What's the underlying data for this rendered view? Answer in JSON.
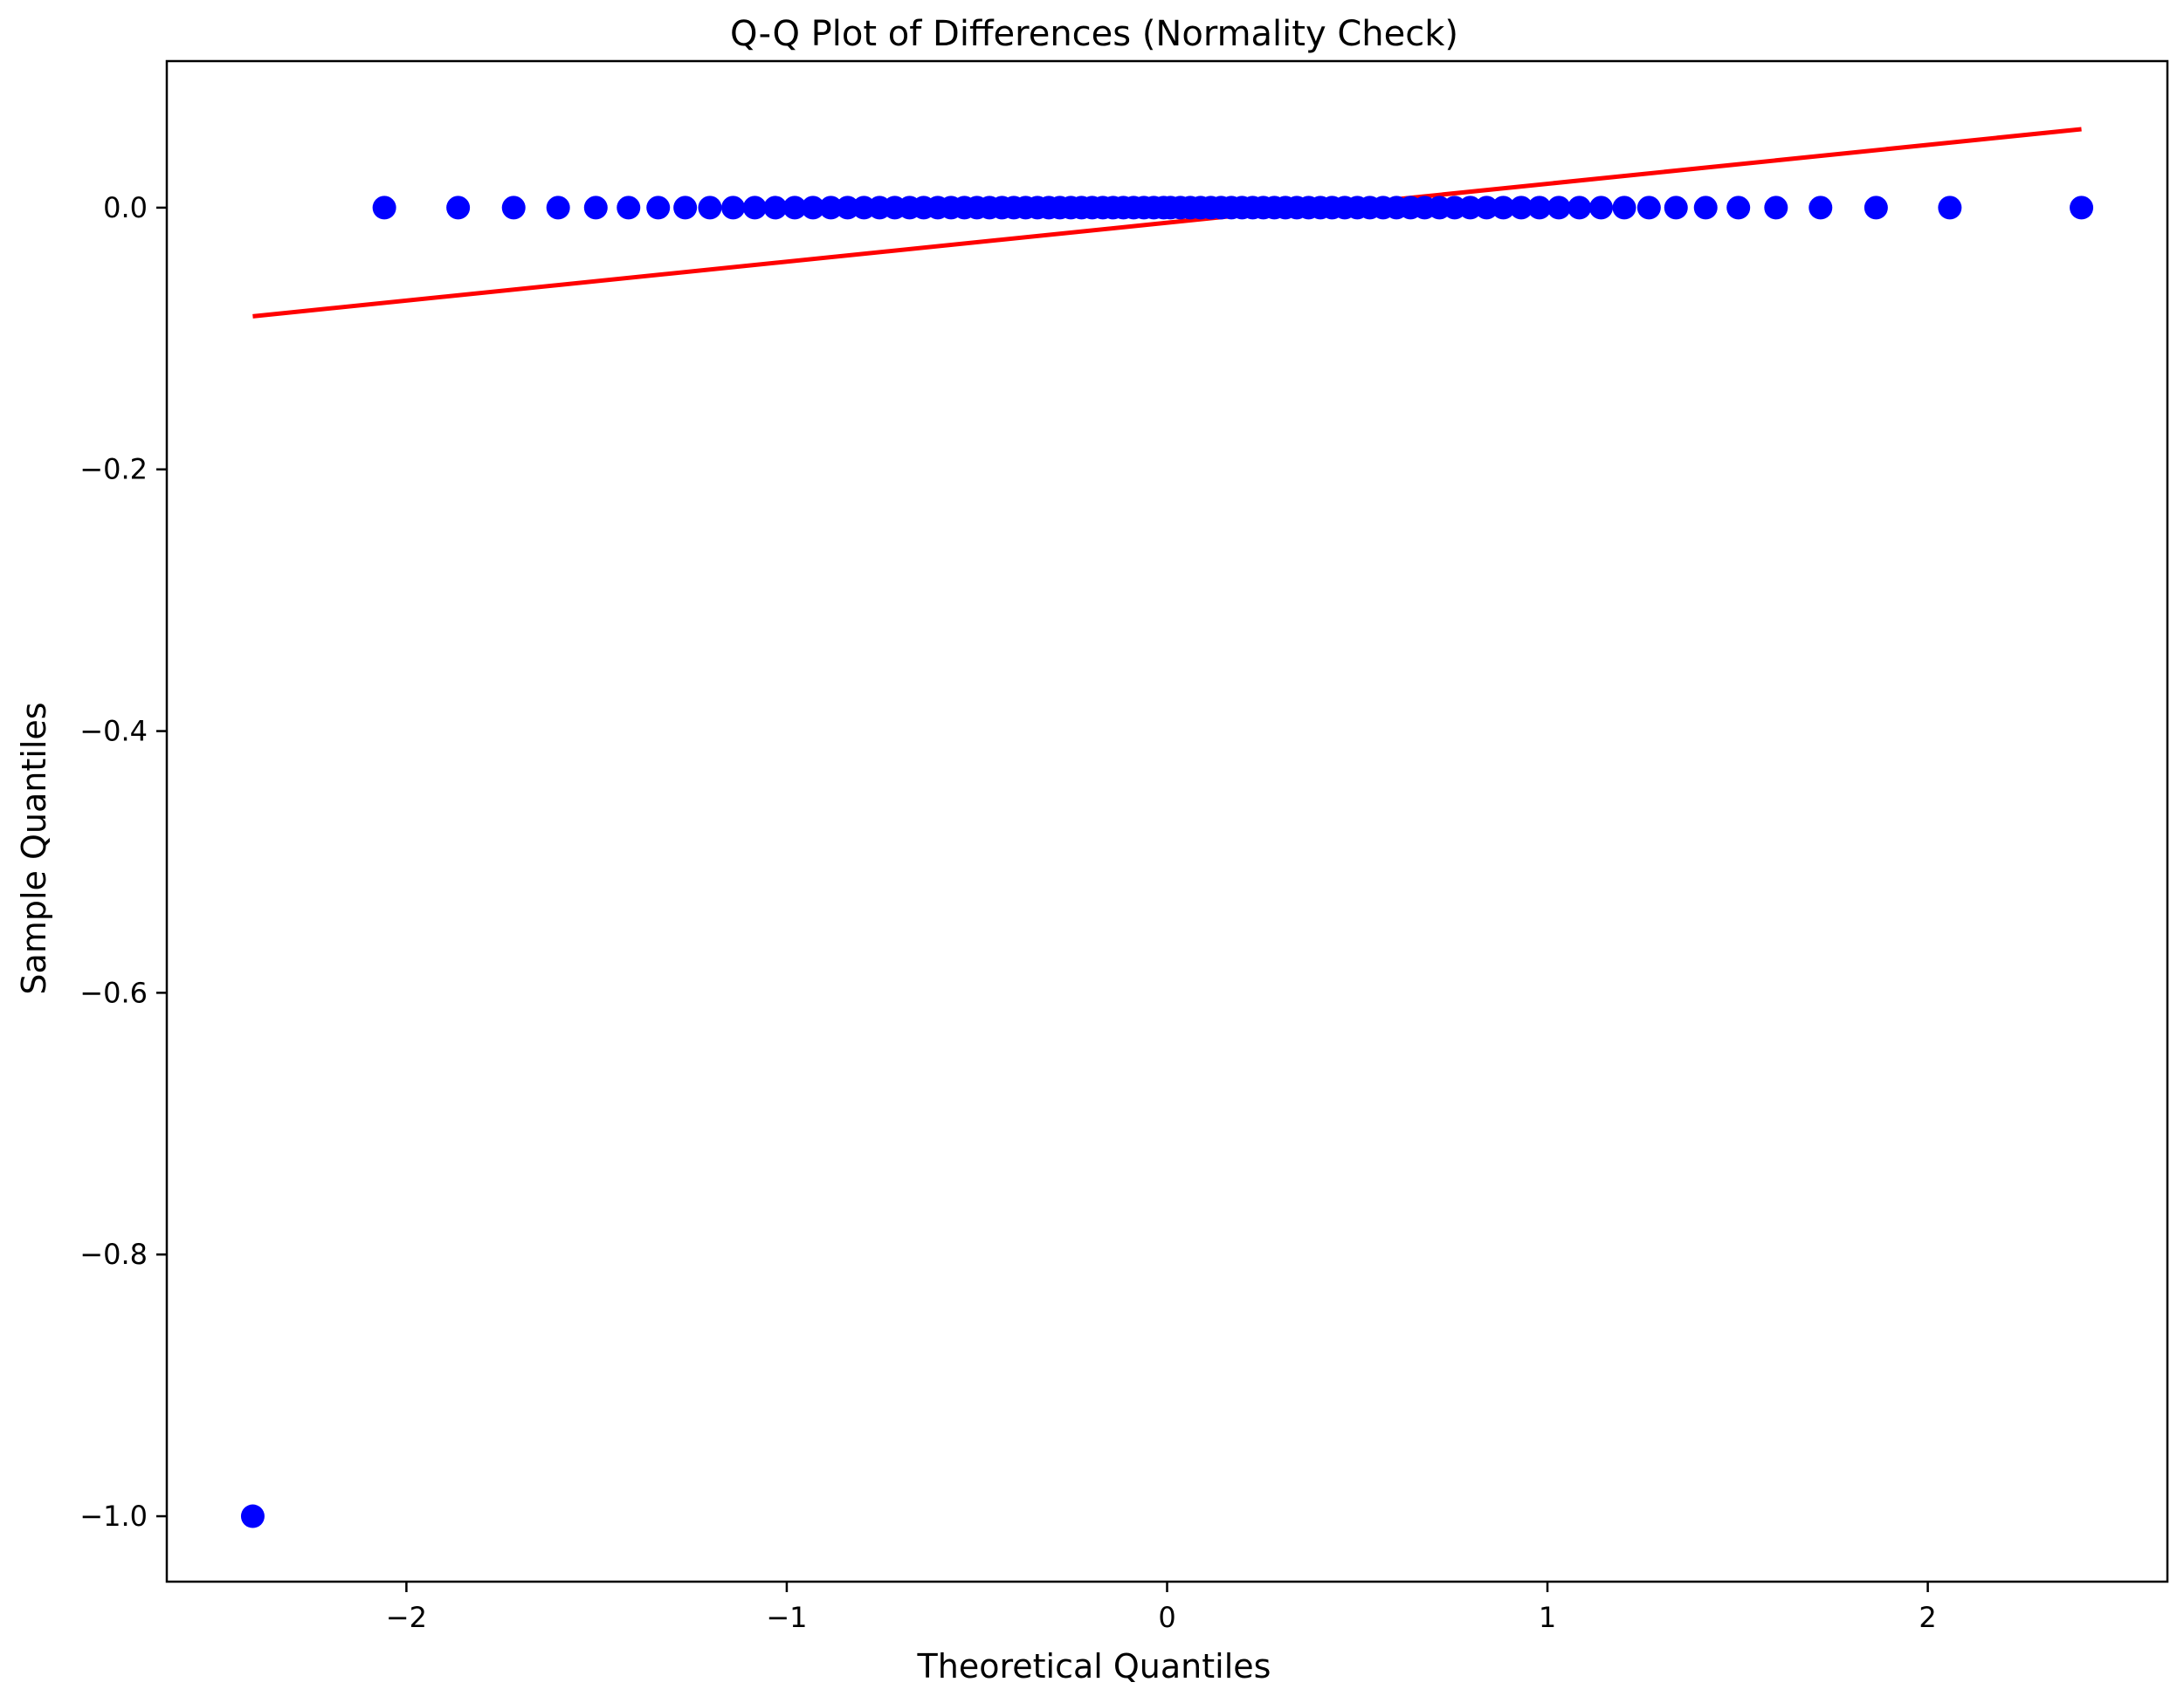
{
  "chart_data": {
    "type": "scatter",
    "title": "Q-Q Plot of Differences (Normality Check)",
    "xlabel": "Theoretical Quantiles",
    "ylabel": "Sample Quantiles",
    "xlim": [
      -2.63,
      2.63
    ],
    "ylim": [
      -1.05,
      0.112
    ],
    "x_ticks": [
      -2,
      -1,
      0,
      1,
      2
    ],
    "x_tick_labels": [
      "−2",
      "−1",
      "0",
      "1",
      "2"
    ],
    "y_ticks": [
      -1.0,
      -0.8,
      -0.6,
      -0.4,
      -0.2,
      0.0
    ],
    "y_tick_labels": [
      "−1.0",
      "−0.8",
      "−0.6",
      "−0.4",
      "−0.2",
      "0.0"
    ],
    "grid": false,
    "legend": "none",
    "points": {
      "color": "#0000ff",
      "x": [
        -2.404,
        -2.058,
        -1.864,
        -1.718,
        -1.601,
        -1.502,
        -1.416,
        -1.338,
        -1.267,
        -1.202,
        -1.141,
        -1.084,
        -1.03,
        -0.979,
        -0.931,
        -0.884,
        -0.84,
        -0.797,
        -0.756,
        -0.716,
        -0.677,
        -0.64,
        -0.603,
        -0.568,
        -0.533,
        -0.5,
        -0.467,
        -0.434,
        -0.403,
        -0.372,
        -0.341,
        -0.311,
        -0.282,
        -0.253,
        -0.225,
        -0.197,
        -0.169,
        -0.142,
        -0.115,
        -0.088,
        -0.061,
        -0.035,
        -0.009,
        0.009,
        0.035,
        0.061,
        0.088,
        0.115,
        0.142,
        0.169,
        0.197,
        0.225,
        0.253,
        0.282,
        0.311,
        0.341,
        0.372,
        0.403,
        0.434,
        0.467,
        0.5,
        0.533,
        0.568,
        0.603,
        0.64,
        0.677,
        0.716,
        0.756,
        0.797,
        0.84,
        0.884,
        0.931,
        0.979,
        1.03,
        1.084,
        1.141,
        1.202,
        1.267,
        1.338,
        1.416,
        1.502,
        1.601,
        1.718,
        1.864,
        2.058,
        2.404
      ],
      "y": [
        -1.0,
        0,
        0,
        0,
        0,
        0,
        0,
        0,
        0,
        0,
        0,
        0,
        0,
        0,
        0,
        0,
        0,
        0,
        0,
        0,
        0,
        0,
        0,
        0,
        0,
        0,
        0,
        0,
        0,
        0,
        0,
        0,
        0,
        0,
        0,
        0,
        0,
        0,
        0,
        0,
        0,
        0,
        0,
        0,
        0,
        0,
        0,
        0,
        0,
        0,
        0,
        0,
        0,
        0,
        0,
        0,
        0,
        0,
        0,
        0,
        0,
        0,
        0,
        0,
        0,
        0,
        0,
        0,
        0,
        0,
        0,
        0,
        0,
        0,
        0,
        0,
        0,
        0,
        0,
        0,
        0,
        0,
        0,
        0,
        0,
        0
      ]
    },
    "reference_line": {
      "color": "#ff0000",
      "x": [
        -2.404,
        2.404
      ],
      "y": [
        -0.083,
        0.06
      ]
    }
  }
}
